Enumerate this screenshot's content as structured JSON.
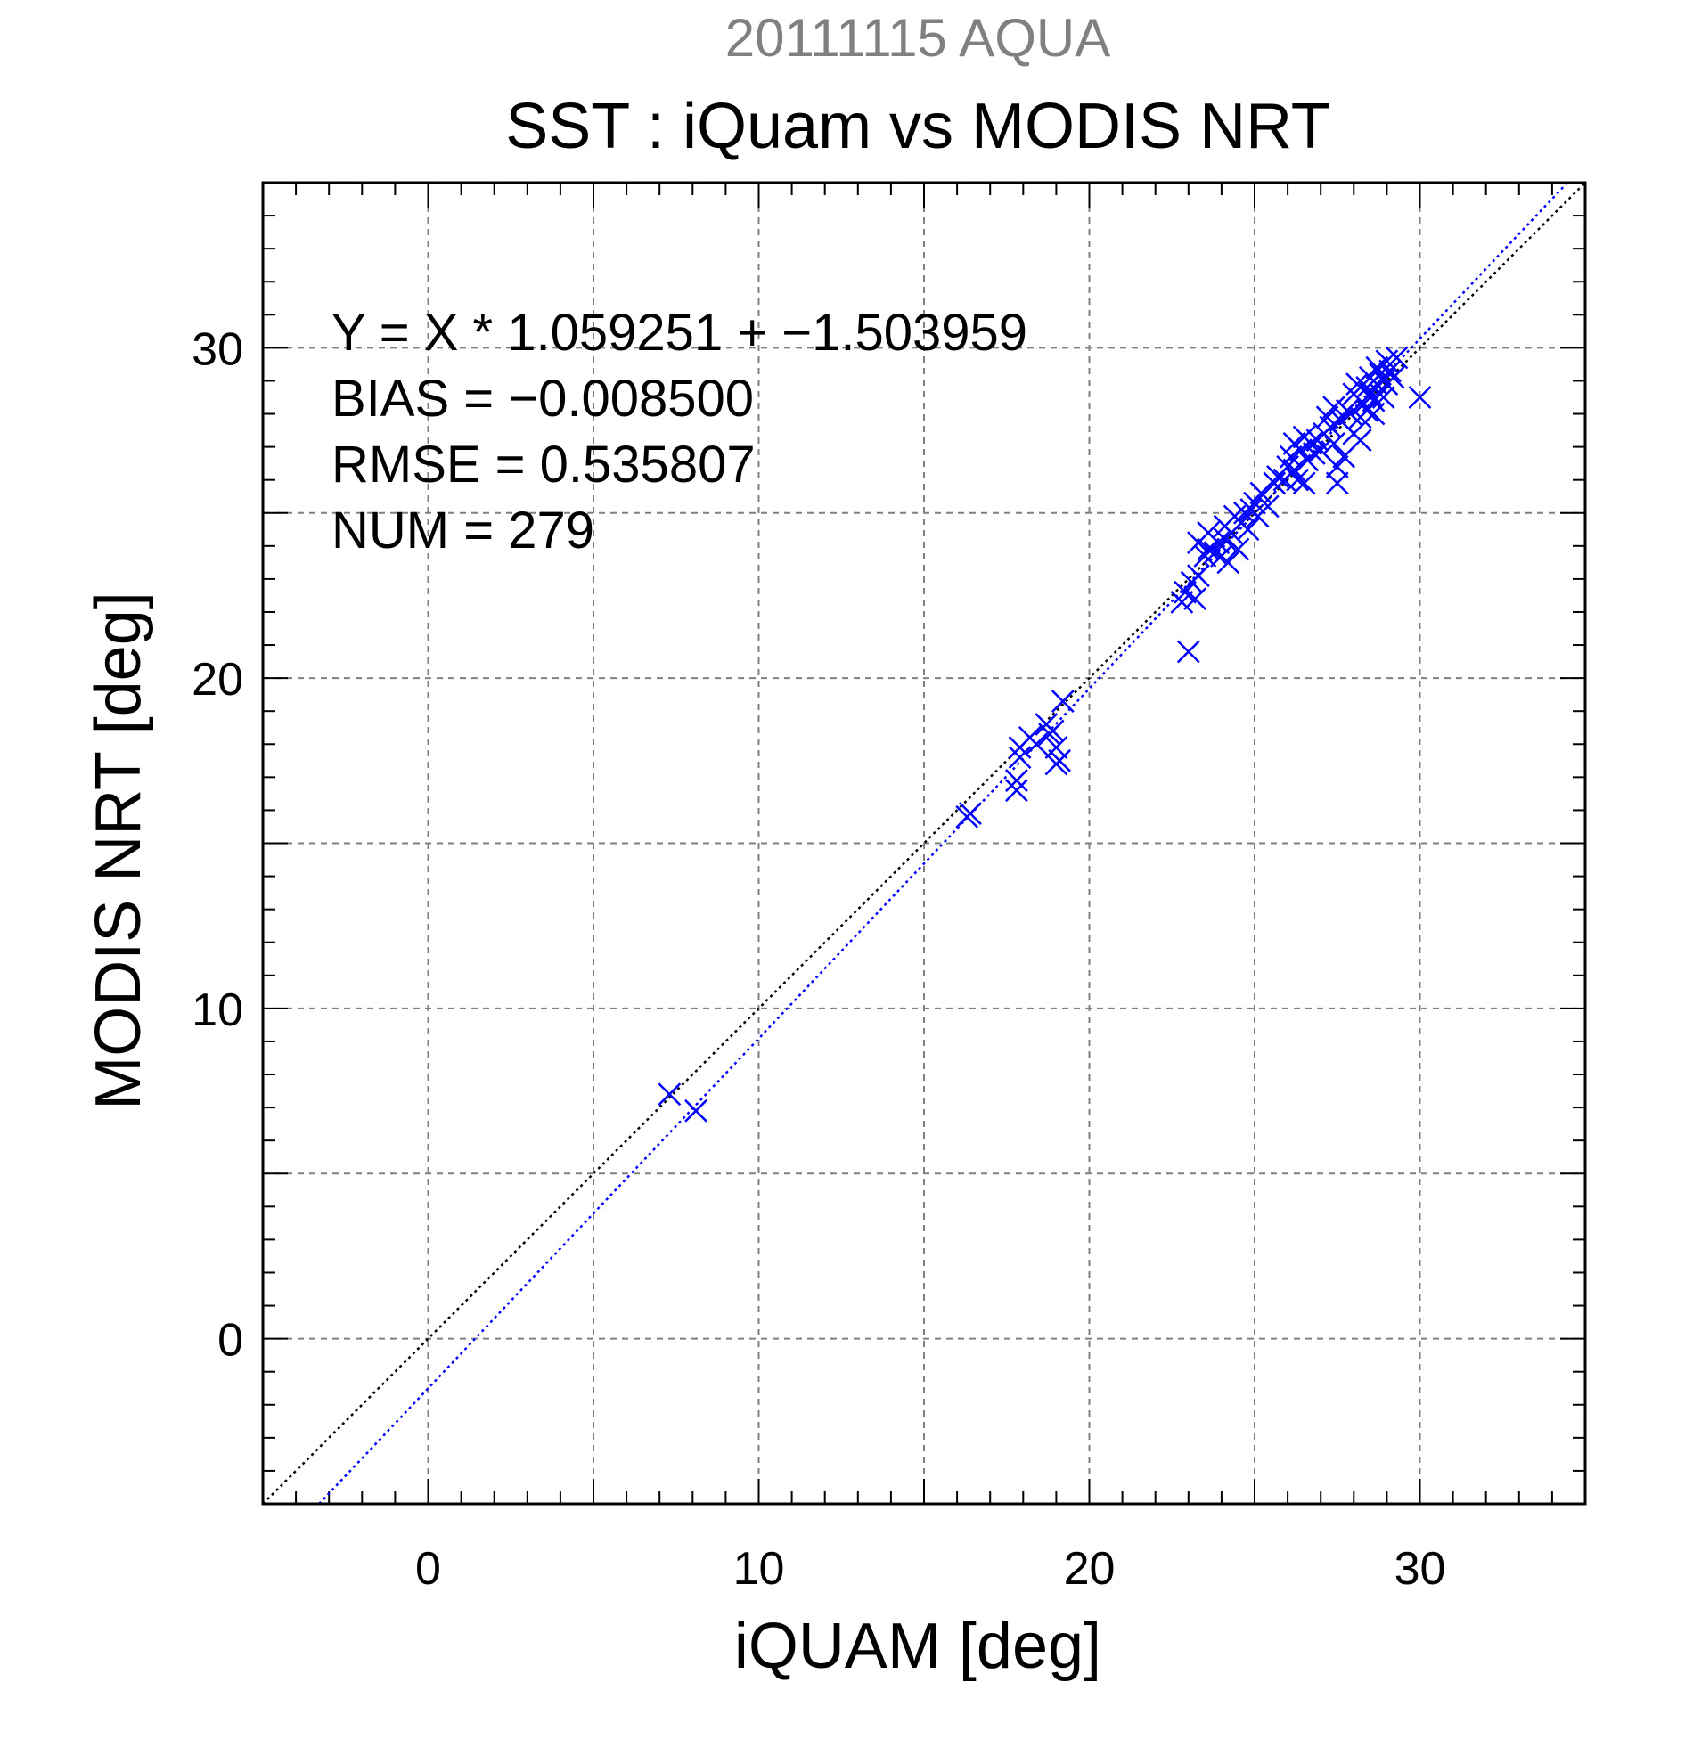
{
  "chart_data": {
    "type": "scatter",
    "supertitle": "20111115 AQUA",
    "title": "SST : iQuam vs MODIS NRT",
    "xlabel": "iQUAM [deg]",
    "ylabel": "MODIS NRT [deg]",
    "xlim": [
      -5,
      35
    ],
    "ylim": [
      -5,
      35
    ],
    "major_ticks": [
      0,
      10,
      20,
      30
    ],
    "grid_ticks": [
      0,
      5,
      10,
      15,
      20,
      25,
      30
    ],
    "minor_tick_step": 1,
    "grid": true,
    "annotations": [
      "Y = X * 1.059251 + −1.503959",
      "BIAS = −0.008500",
      "RMSE = 0.535807",
      "NUM = 279"
    ],
    "lines": [
      {
        "name": "1:1",
        "slope": 1.0,
        "intercept": 0.0,
        "color": "#000000",
        "style": "dotted"
      },
      {
        "name": "fit",
        "slope": 1.059251,
        "intercept": -1.503959,
        "color": "#0000ff",
        "style": "dotted"
      }
    ],
    "colors": {
      "points": "#0000ff",
      "supertitle": "#808080",
      "grid": "#808080"
    },
    "marker": "x-mark",
    "series": [
      {
        "values": [
          [
            7.3,
            7.4
          ],
          [
            8.1,
            6.9
          ],
          [
            16.3,
            15.8
          ],
          [
            16.4,
            15.9
          ],
          [
            17.8,
            16.6
          ],
          [
            17.8,
            16.9
          ],
          [
            17.9,
            17.6
          ],
          [
            17.9,
            17.9
          ],
          [
            18.2,
            18.2
          ],
          [
            18.4,
            18.0
          ],
          [
            18.7,
            18.6
          ],
          [
            18.8,
            18.3
          ],
          [
            18.9,
            18.4
          ],
          [
            19.0,
            17.4
          ],
          [
            19.0,
            17.9
          ],
          [
            19.1,
            17.5
          ],
          [
            19.2,
            19.3
          ],
          [
            22.8,
            22.3
          ],
          [
            22.9,
            22.6
          ],
          [
            23.0,
            20.8
          ],
          [
            23.1,
            22.9
          ],
          [
            23.2,
            22.4
          ],
          [
            23.3,
            23.1
          ],
          [
            23.3,
            24.1
          ],
          [
            23.5,
            23.7
          ],
          [
            23.6,
            23.9
          ],
          [
            23.6,
            24.4
          ],
          [
            23.8,
            23.8
          ],
          [
            23.9,
            24.1
          ],
          [
            24.0,
            23.7
          ],
          [
            24.1,
            24.2
          ],
          [
            24.1,
            24.6
          ],
          [
            24.2,
            23.5
          ],
          [
            24.3,
            24.4
          ],
          [
            24.4,
            24.9
          ],
          [
            24.5,
            23.9
          ],
          [
            24.6,
            24.7
          ],
          [
            24.7,
            25.0
          ],
          [
            24.8,
            24.5
          ],
          [
            24.9,
            25.1
          ],
          [
            25.0,
            25.3
          ],
          [
            25.1,
            24.9
          ],
          [
            25.2,
            25.6
          ],
          [
            25.4,
            25.2
          ],
          [
            25.6,
            25.9
          ],
          [
            25.7,
            26.1
          ],
          [
            25.9,
            26.0
          ],
          [
            26.0,
            26.4
          ],
          [
            26.1,
            26.7
          ],
          [
            26.2,
            26.3
          ],
          [
            26.2,
            27.1
          ],
          [
            26.3,
            26.0
          ],
          [
            26.4,
            26.9
          ],
          [
            26.5,
            27.3
          ],
          [
            26.5,
            25.9
          ],
          [
            26.6,
            26.6
          ],
          [
            26.7,
            27.1
          ],
          [
            26.8,
            26.8
          ],
          [
            26.9,
            27.2
          ],
          [
            27.0,
            26.9
          ],
          [
            27.1,
            27.4
          ],
          [
            27.2,
            27.9
          ],
          [
            27.3,
            27.6
          ],
          [
            27.4,
            27.1
          ],
          [
            27.4,
            28.2
          ],
          [
            27.5,
            26.4
          ],
          [
            27.5,
            25.9
          ],
          [
            27.6,
            27.8
          ],
          [
            27.7,
            26.7
          ],
          [
            27.8,
            28.1
          ],
          [
            27.9,
            28.0
          ],
          [
            28.0,
            27.4
          ],
          [
            28.0,
            28.6
          ],
          [
            28.1,
            28.9
          ],
          [
            28.2,
            27.9
          ],
          [
            28.2,
            27.2
          ],
          [
            28.3,
            28.3
          ],
          [
            28.4,
            28.8
          ],
          [
            28.4,
            28.1
          ],
          [
            28.5,
            28.6
          ],
          [
            28.5,
            29.1
          ],
          [
            28.6,
            28.4
          ],
          [
            28.6,
            28.0
          ],
          [
            28.7,
            28.9
          ],
          [
            28.7,
            29.4
          ],
          [
            28.8,
            28.6
          ],
          [
            28.8,
            29.2
          ],
          [
            28.9,
            28.5
          ],
          [
            28.9,
            29.0
          ],
          [
            29.0,
            29.6
          ],
          [
            29.0,
            28.9
          ],
          [
            29.1,
            29.3
          ],
          [
            29.2,
            29.1
          ],
          [
            29.3,
            29.7
          ],
          [
            30.0,
            28.5
          ]
        ]
      }
    ]
  }
}
